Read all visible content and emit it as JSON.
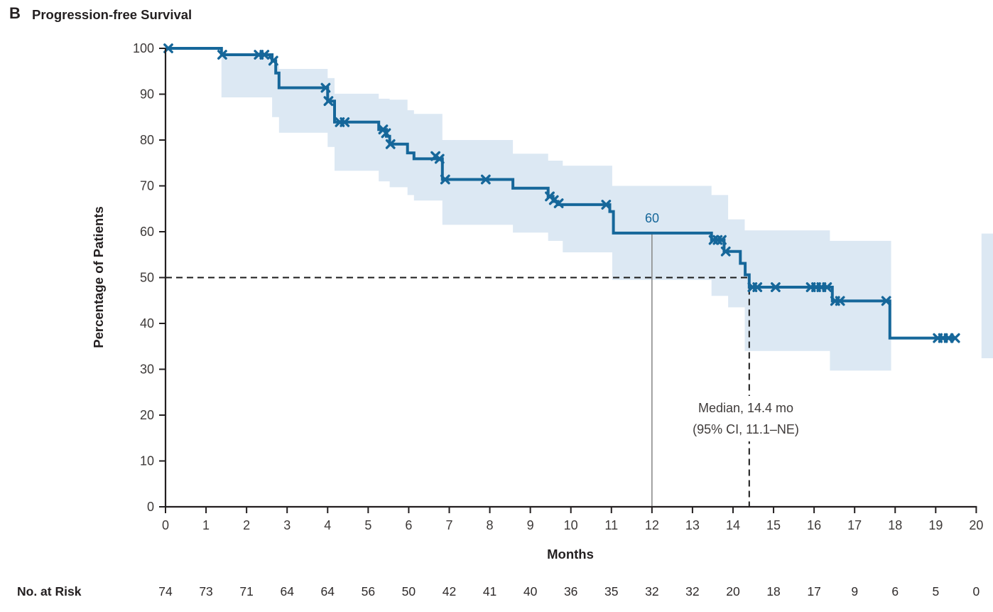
{
  "title": {
    "letter": "B",
    "text": "Progression-free Survival"
  },
  "chart_data": {
    "type": "line",
    "subtype": "kaplan-meier-step-curve-with-confidence-band",
    "title": "Progression-free Survival",
    "xlabel": "Months",
    "ylabel": "Percentage of Patients",
    "xlim": [
      0,
      20
    ],
    "ylim": [
      0,
      100
    ],
    "xticks": [
      0,
      1,
      2,
      3,
      4,
      5,
      6,
      7,
      8,
      9,
      10,
      11,
      12,
      13,
      14,
      15,
      16,
      17,
      18,
      19,
      20
    ],
    "yticks": [
      0,
      10,
      20,
      30,
      40,
      50,
      60,
      70,
      80,
      90,
      100
    ],
    "curve_color": "#16679a",
    "band_color": "#dce8f3",
    "axis_color": "#231f20",
    "tick_text_color": "#3e3a39",
    "steps": [
      [
        0,
        100
      ],
      [
        1.38,
        98.6
      ],
      [
        2.63,
        97.3
      ],
      [
        2.72,
        94.6
      ],
      [
        2.8,
        91.4
      ],
      [
        4.0,
        88.5
      ],
      [
        4.17,
        83.9
      ],
      [
        5.26,
        82.3
      ],
      [
        5.45,
        80.8
      ],
      [
        5.53,
        79.1
      ],
      [
        5.97,
        77.2
      ],
      [
        6.13,
        75.9
      ],
      [
        6.83,
        71.4
      ],
      [
        8.57,
        69.5
      ],
      [
        9.44,
        67.7
      ],
      [
        9.56,
        66.6
      ],
      [
        9.68,
        65.9
      ],
      [
        10.96,
        64.4
      ],
      [
        11.05,
        59.7
      ],
      [
        13.47,
        58.2
      ],
      [
        13.78,
        55.7
      ],
      [
        14.18,
        53.1
      ],
      [
        14.3,
        50.6
      ],
      [
        14.4,
        47.9
      ],
      [
        16.45,
        44.9
      ],
      [
        17.87,
        36.8
      ]
    ],
    "end_t": 19.52,
    "censors": [
      [
        0.07,
        100
      ],
      [
        1.4,
        98.6
      ],
      [
        2.3,
        98.6
      ],
      [
        2.44,
        98.6
      ],
      [
        2.66,
        97.3
      ],
      [
        3.95,
        91.4
      ],
      [
        4.02,
        88.5
      ],
      [
        4.3,
        83.9
      ],
      [
        4.42,
        83.9
      ],
      [
        5.37,
        82.3
      ],
      [
        5.44,
        81.5
      ],
      [
        5.55,
        79.1
      ],
      [
        6.66,
        76.5
      ],
      [
        6.76,
        75.9
      ],
      [
        6.9,
        71.4
      ],
      [
        7.9,
        71.4
      ],
      [
        9.48,
        67.7
      ],
      [
        9.58,
        66.9
      ],
      [
        9.7,
        66.2
      ],
      [
        10.87,
        65.9
      ],
      [
        13.52,
        58.2
      ],
      [
        13.62,
        58.2
      ],
      [
        13.72,
        58.2
      ],
      [
        13.82,
        55.7
      ],
      [
        14.48,
        47.9
      ],
      [
        14.6,
        47.9
      ],
      [
        15.05,
        47.9
      ],
      [
        15.92,
        47.9
      ],
      [
        16.05,
        47.9
      ],
      [
        16.18,
        47.9
      ],
      [
        16.32,
        47.9
      ],
      [
        16.52,
        44.9
      ],
      [
        16.64,
        44.9
      ],
      [
        17.78,
        44.9
      ],
      [
        19.05,
        36.8
      ],
      [
        19.18,
        36.8
      ],
      [
        19.32,
        36.8
      ],
      [
        19.48,
        36.8
      ]
    ],
    "band": [
      [
        1.38,
        2.63,
        89.3,
        98.3
      ],
      [
        2.63,
        2.8,
        85.0,
        96.5
      ],
      [
        2.8,
        4.0,
        81.6,
        95.5
      ],
      [
        4.0,
        4.17,
        78.5,
        93.5
      ],
      [
        4.17,
        5.26,
        73.3,
        90.1
      ],
      [
        5.26,
        5.53,
        71.0,
        89.0
      ],
      [
        5.53,
        5.97,
        69.7,
        88.8
      ],
      [
        5.97,
        6.13,
        68.0,
        86.5
      ],
      [
        6.13,
        6.83,
        66.8,
        85.7
      ],
      [
        6.83,
        8.57,
        61.5,
        80.0
      ],
      [
        8.57,
        9.44,
        59.8,
        77.0
      ],
      [
        9.44,
        9.8,
        58.0,
        75.5
      ],
      [
        9.8,
        11.02,
        55.5,
        74.4
      ],
      [
        11.02,
        13.47,
        49.5,
        70.0
      ],
      [
        13.47,
        13.88,
        46.0,
        68.0
      ],
      [
        13.88,
        14.29,
        43.5,
        62.7
      ],
      [
        14.29,
        16.39,
        34.0,
        60.3
      ],
      [
        16.39,
        17.9,
        29.7,
        58.0
      ]
    ],
    "edge_strip": {
      "t": [
        20.13,
        20.42
      ],
      "lo": 32.4,
      "hi": 59.6
    },
    "reference_line": {
      "x": 12,
      "top_value": 59.7,
      "label": "60",
      "line_color": "#8b8b8b",
      "label_color": "#16679a"
    },
    "fifty_percent_line": {
      "y": 50,
      "x_end": 14.4,
      "dash_color": "#1a1a1a"
    },
    "median": {
      "x": 14.4,
      "label_line1": "Median, 14.4 mo",
      "label_line2": "(95% CI, 11.1–NE)"
    },
    "no_at_risk": {
      "label": "No. at Risk",
      "months": [
        0,
        1,
        2,
        3,
        4,
        5,
        6,
        7,
        8,
        9,
        10,
        11,
        12,
        13,
        14,
        15,
        16,
        17,
        18,
        19,
        20
      ],
      "values": [
        74,
        73,
        71,
        64,
        64,
        56,
        50,
        42,
        41,
        40,
        36,
        35,
        32,
        32,
        20,
        18,
        17,
        9,
        6,
        5,
        0
      ]
    }
  }
}
